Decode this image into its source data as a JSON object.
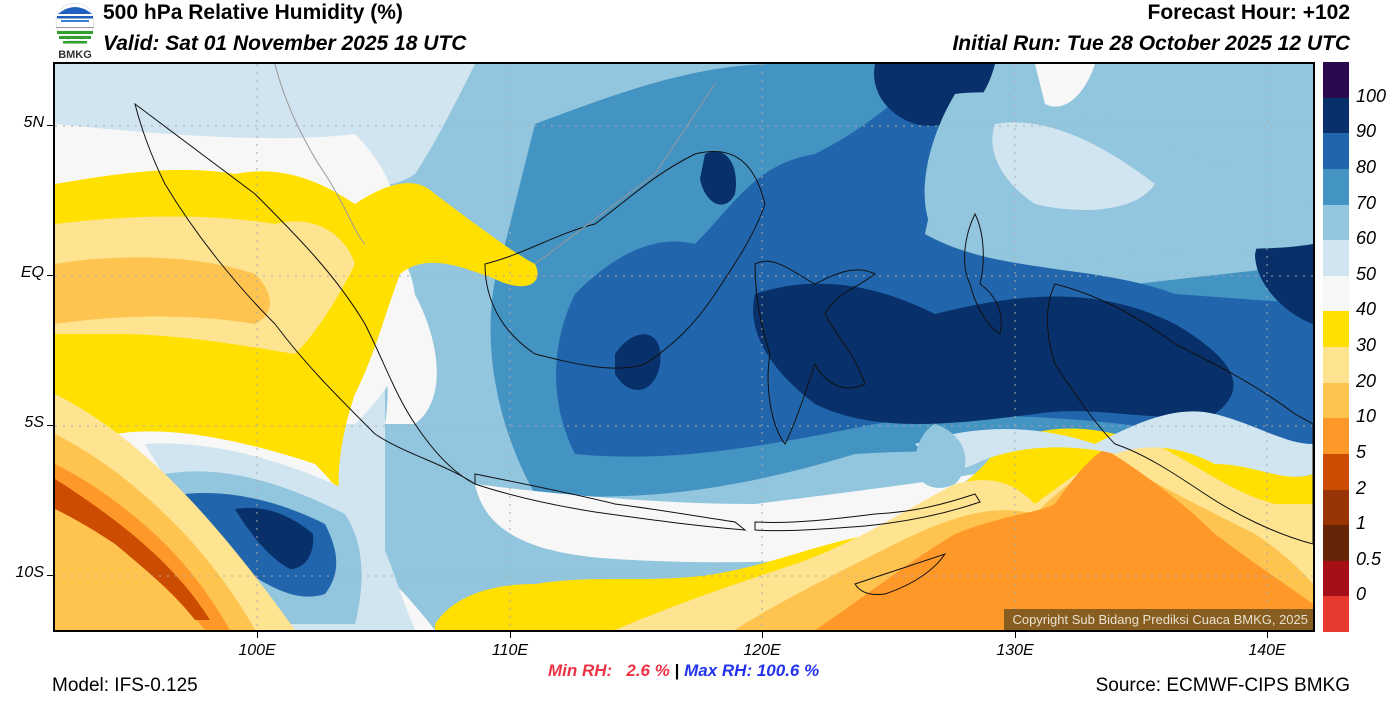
{
  "header": {
    "title": "500 hPa Relative Humidity (%)",
    "valid": "Valid: Sat 01 November 2025 18 UTC",
    "forecast_hour": "Forecast Hour: +102",
    "initial_run": "Initial Run: Tue 28 October 2025 12 UTC",
    "logo_text": "BMKG"
  },
  "map": {
    "lat_labels": [
      "5N",
      "EQ",
      "5S",
      "10S"
    ],
    "lon_labels": [
      "100E",
      "110E",
      "120E",
      "130E",
      "140E"
    ],
    "copyright": "Copyright Sub Bidang Prediksi Cuaca BMKG, 2025"
  },
  "colorbar": {
    "labels": [
      "100",
      "90",
      "80",
      "70",
      "60",
      "50",
      "40",
      "30",
      "20",
      "10",
      "5",
      "2",
      "1",
      "0.5",
      "0"
    ],
    "colors": [
      "#2a0a4e",
      "#08306b",
      "#2166ac",
      "#4393c3",
      "#92c5de",
      "#d1e5f0",
      "#f7f7f7",
      "#ffe000",
      "#fee391",
      "#fec44f",
      "#fe9929",
      "#cc4c02",
      "#993404",
      "#662506",
      "#a50f15",
      "#e8392f"
    ]
  },
  "footer": {
    "model": "Model: IFS-0.125",
    "min_rh": "Min RH:   2.6 %",
    "separator": "|",
    "max_rh": "Max RH: 100.6 %",
    "source": "Source: ECMWF-CIPS BMKG"
  },
  "stats": {
    "min_rh_value": 2.6,
    "max_rh_value": 100.6
  }
}
